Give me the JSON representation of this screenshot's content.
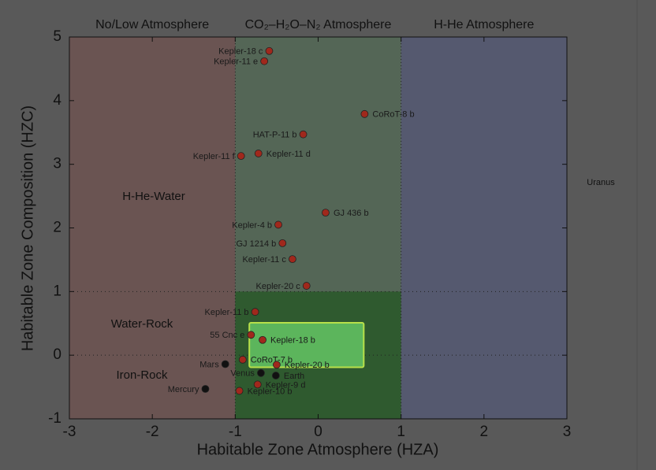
{
  "chart_data": {
    "type": "scatter",
    "x_label": "Habitable Zone Atmosphere (HZA)",
    "y_label": "Habitable Zone Composition (HZC)",
    "xlim": [
      -3,
      3
    ],
    "ylim": [
      -1,
      5
    ],
    "xticks": [
      -3,
      -2,
      -1,
      0,
      1,
      2,
      3
    ],
    "yticks": [
      -1,
      0,
      1,
      2,
      3,
      4,
      5
    ],
    "zones": [
      {
        "name": "No/Low Atmosphere",
        "xlim": [
          -3,
          -1
        ],
        "color": "#6a5452"
      },
      {
        "name": "CO₂–H₂O–N₂ Atmosphere",
        "xlim": [
          -1,
          1
        ],
        "color": "#546656"
      },
      {
        "name": "H-He Atmosphere",
        "xlim": [
          1,
          3
        ],
        "color": "#55596f"
      }
    ],
    "habitable_region": {
      "xlim": [
        -1,
        1
      ],
      "ylim": [
        -1,
        1
      ],
      "color": "#2f5a2f"
    },
    "composition_lines": [
      0,
      1
    ],
    "composition_labels": [
      "H-He-Water",
      "Water-Rock",
      "Iron-Rock"
    ],
    "highlight": {
      "xlim": [
        -0.83,
        0.55
      ],
      "ylim": [
        -0.19,
        0.51
      ],
      "color": "#5cb55c"
    },
    "side_note": "Uranus",
    "series": [
      {
        "color": "#a0281c",
        "labels": [
          "Kepler-18 c",
          "Kepler-11 e",
          "CoRoT-8 b",
          "HAT-P-11 b",
          "Kepler-11 d",
          "Kepler-11 f",
          "GJ 436 b",
          "Kepler-4 b",
          "GJ 1214 b",
          "Kepler-11 c",
          "Kepler-20 c",
          "Kepler-11 b",
          "55 Cnc e",
          "Kepler-18 b",
          "CoRoT-7 b",
          "Kepler-20 b",
          "Kepler-9 d",
          "Kepler-10 b"
        ],
        "x": [
          -0.59,
          -0.65,
          0.56,
          -0.18,
          -0.72,
          -0.93,
          0.09,
          -0.48,
          -0.43,
          -0.31,
          -0.14,
          -0.76,
          -0.81,
          -0.67,
          -0.91,
          -0.5,
          -0.73,
          -0.95
        ],
        "values": [
          4.78,
          4.62,
          3.79,
          3.47,
          3.17,
          3.13,
          2.24,
          2.05,
          1.76,
          1.51,
          1.09,
          0.68,
          0.32,
          0.24,
          -0.07,
          -0.15,
          -0.46,
          -0.56
        ]
      },
      {
        "color": "#111111",
        "labels": [
          "Mars",
          "Venus",
          "Earth",
          "Mercury"
        ],
        "x": [
          -1.12,
          -0.69,
          -0.51,
          -1.36
        ],
        "values": [
          -0.14,
          -0.28,
          -0.32,
          -0.53
        ]
      }
    ]
  }
}
